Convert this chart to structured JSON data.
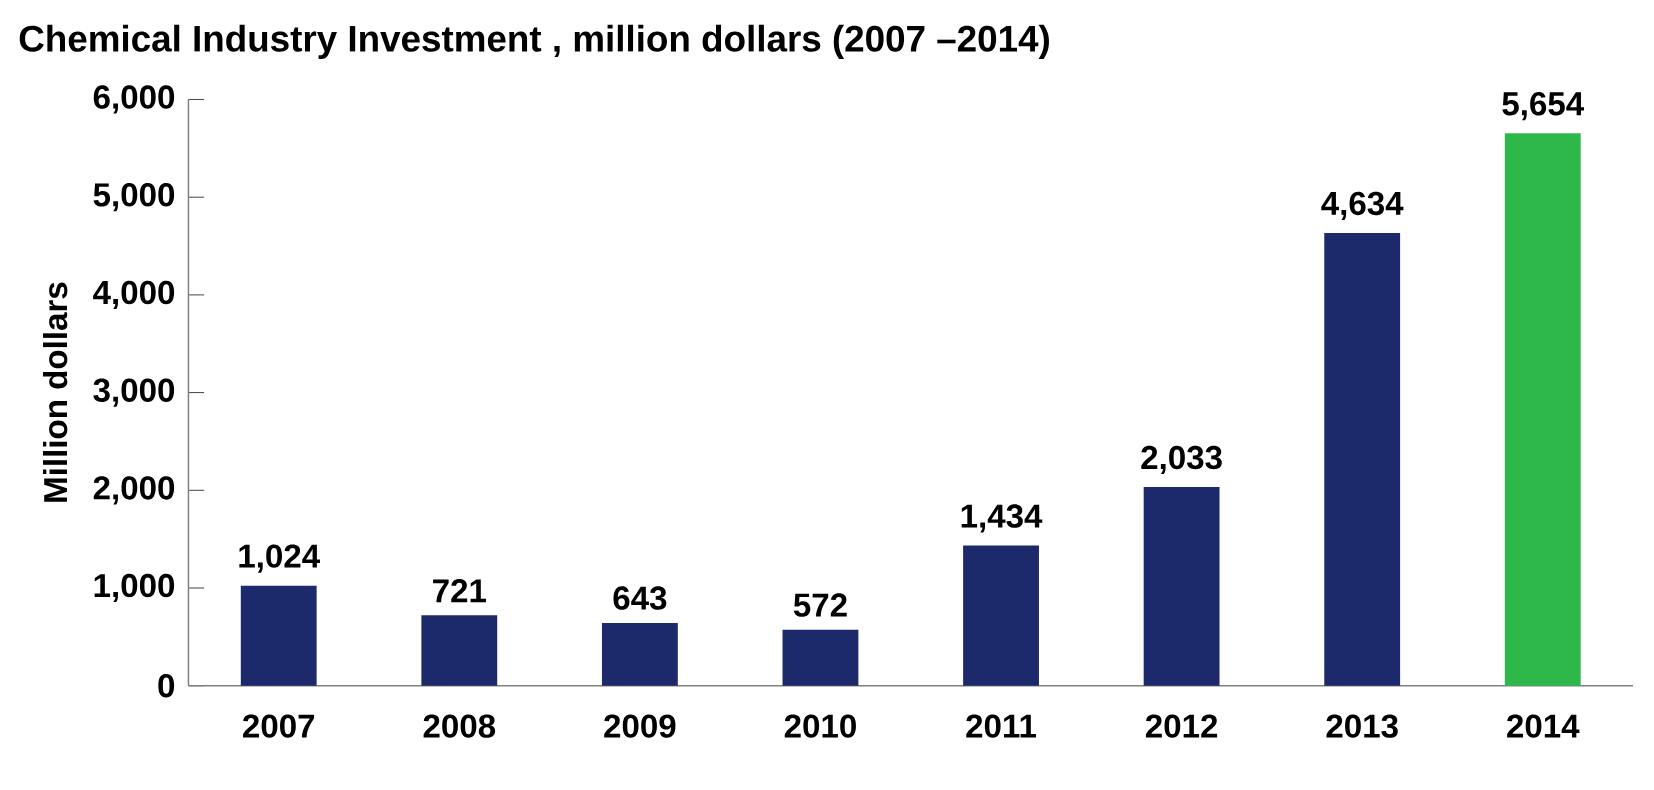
{
  "chart_data": {
    "type": "bar",
    "title": "Chemical Industry Investment , million dollars (2007 –2014)",
    "ylabel": "Million dollars",
    "categories": [
      "2007",
      "2008",
      "2009",
      "2010",
      "2011",
      "2012",
      "2013",
      "2014"
    ],
    "values": [
      1024,
      721,
      643,
      572,
      1434,
      2033,
      4634,
      5654
    ],
    "colors": [
      "#1c2a6b",
      "#1c2a6b",
      "#1c2a6b",
      "#1c2a6b",
      "#1c2a6b",
      "#1c2a6b",
      "#1c2a6b",
      "#2eb84a"
    ],
    "value_labels": [
      "1,024",
      "721",
      "643",
      "572",
      "1,434",
      "2,033",
      "4,634",
      "5,654"
    ],
    "ylim": [
      0,
      6000
    ],
    "yticks": [
      0,
      {
        "value": 1000,
        "label": "1,000"
      },
      {
        "value": 2000,
        "label": "2,000"
      },
      {
        "value": 3000,
        "label": "3,000"
      },
      {
        "value": 4000,
        "label": "4,000"
      },
      {
        "value": 5000,
        "label": "5,000"
      },
      {
        "value": 6000,
        "label": "6,000"
      }
    ],
    "grid": false
  }
}
